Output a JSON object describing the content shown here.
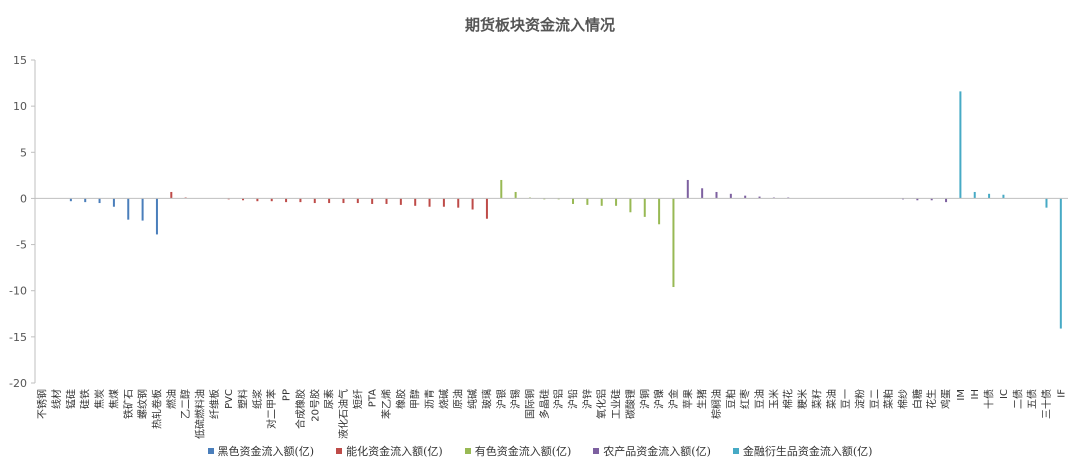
{
  "chart_data": {
    "type": "bar",
    "title": "期货板块资金流入情况",
    "xlabel": "",
    "ylabel": "",
    "ylim": [
      -20,
      15
    ],
    "yticks": [
      15,
      10,
      5,
      0,
      -5,
      -10,
      -15,
      -20
    ],
    "grid": false,
    "legend_position": "bottom",
    "colors": {
      "black": "#4a7ebb",
      "energy": "#be4b48",
      "nonferrous": "#98b954",
      "agri": "#7d60a0",
      "financial": "#46aac5"
    },
    "series": [
      {
        "name": "黑色资金流入额(亿)",
        "key": "black",
        "items": [
          {
            "c": "不锈钢",
            "v": 0
          },
          {
            "c": "线材",
            "v": 0
          },
          {
            "c": "锰硅",
            "v": -0.3
          },
          {
            "c": "硅铁",
            "v": -0.4
          },
          {
            "c": "焦炭",
            "v": -0.5
          },
          {
            "c": "焦煤",
            "v": -0.9
          },
          {
            "c": "铁矿石",
            "v": -2.3
          },
          {
            "c": "螺纹钢",
            "v": -2.4
          },
          {
            "c": "热轧卷板",
            "v": -3.9
          }
        ]
      },
      {
        "name": "能化资金流入额(亿)",
        "key": "energy",
        "items": [
          {
            "c": "燃油",
            "v": 0.7
          },
          {
            "c": "乙二醇",
            "v": 0.1
          },
          {
            "c": "低硫燃料油",
            "v": 0
          },
          {
            "c": "纤维板",
            "v": 0
          },
          {
            "c": "PVC",
            "v": -0.1
          },
          {
            "c": "塑料",
            "v": -0.2
          },
          {
            "c": "纸浆",
            "v": -0.3
          },
          {
            "c": "对二甲苯",
            "v": -0.3
          },
          {
            "c": "PP",
            "v": -0.4
          },
          {
            "c": "合成橡胶",
            "v": -0.4
          },
          {
            "c": "20号胶",
            "v": -0.5
          },
          {
            "c": "尿素",
            "v": -0.5
          },
          {
            "c": "液化石油气",
            "v": -0.5
          },
          {
            "c": "短纤",
            "v": -0.5
          },
          {
            "c": "PTA",
            "v": -0.6
          },
          {
            "c": "苯乙烯",
            "v": -0.6
          },
          {
            "c": "橡胶",
            "v": -0.7
          },
          {
            "c": "甲醇",
            "v": -0.8
          },
          {
            "c": "沥青",
            "v": -0.9
          },
          {
            "c": "烧碱",
            "v": -0.9
          },
          {
            "c": "原油",
            "v": -1.0
          },
          {
            "c": "纯碱",
            "v": -1.2
          },
          {
            "c": "玻璃",
            "v": -2.2
          }
        ]
      },
      {
        "name": "有色资金流入额(亿)",
        "key": "nonferrous",
        "items": [
          {
            "c": "沪银",
            "v": 2.0
          },
          {
            "c": "沪锡",
            "v": 0.7
          },
          {
            "c": "国际铜",
            "v": 0.1
          },
          {
            "c": "多晶硅",
            "v": -0.1
          },
          {
            "c": "沪铝",
            "v": -0.1
          },
          {
            "c": "沪铅",
            "v": -0.6
          },
          {
            "c": "沪锌",
            "v": -0.7
          },
          {
            "c": "氧化铝",
            "v": -0.8
          },
          {
            "c": "工业硅",
            "v": -0.8
          },
          {
            "c": "碳酸锂",
            "v": -1.5
          },
          {
            "c": "沪铜",
            "v": -2.0
          },
          {
            "c": "沪镍",
            "v": -2.8
          },
          {
            "c": "沪金",
            "v": -9.6
          }
        ]
      },
      {
        "name": "农产品资金流入额(亿)",
        "key": "agri",
        "items": [
          {
            "c": "苹果",
            "v": 2.0
          },
          {
            "c": "生猪",
            "v": 1.1
          },
          {
            "c": "棕榈油",
            "v": 0.7
          },
          {
            "c": "豆粕",
            "v": 0.5
          },
          {
            "c": "红枣",
            "v": 0.3
          },
          {
            "c": "豆油",
            "v": 0.2
          },
          {
            "c": "玉米",
            "v": 0.1
          },
          {
            "c": "棉花",
            "v": 0.1
          },
          {
            "c": "粳米",
            "v": 0
          },
          {
            "c": "菜籽",
            "v": 0
          },
          {
            "c": "菜油",
            "v": 0
          },
          {
            "c": "豆一",
            "v": 0
          },
          {
            "c": "淀粉",
            "v": 0
          },
          {
            "c": "豆二",
            "v": 0
          },
          {
            "c": "菜粕",
            "v": 0
          },
          {
            "c": "棉纱",
            "v": -0.1
          },
          {
            "c": "白糖",
            "v": -0.2
          },
          {
            "c": "花生",
            "v": -0.2
          },
          {
            "c": "鸡蛋",
            "v": -0.4
          }
        ]
      },
      {
        "name": "金融衍生品资金流入额(亿)",
        "key": "financial",
        "items": [
          {
            "c": "IM",
            "v": 11.6
          },
          {
            "c": "IH",
            "v": 0.7
          },
          {
            "c": "十债",
            "v": 0.5
          },
          {
            "c": "IC",
            "v": 0.4
          },
          {
            "c": "二债",
            "v": 0
          },
          {
            "c": "五债",
            "v": 0
          },
          {
            "c": "三十债",
            "v": -1.0
          },
          {
            "c": "IF",
            "v": -14.1
          }
        ]
      }
    ]
  }
}
